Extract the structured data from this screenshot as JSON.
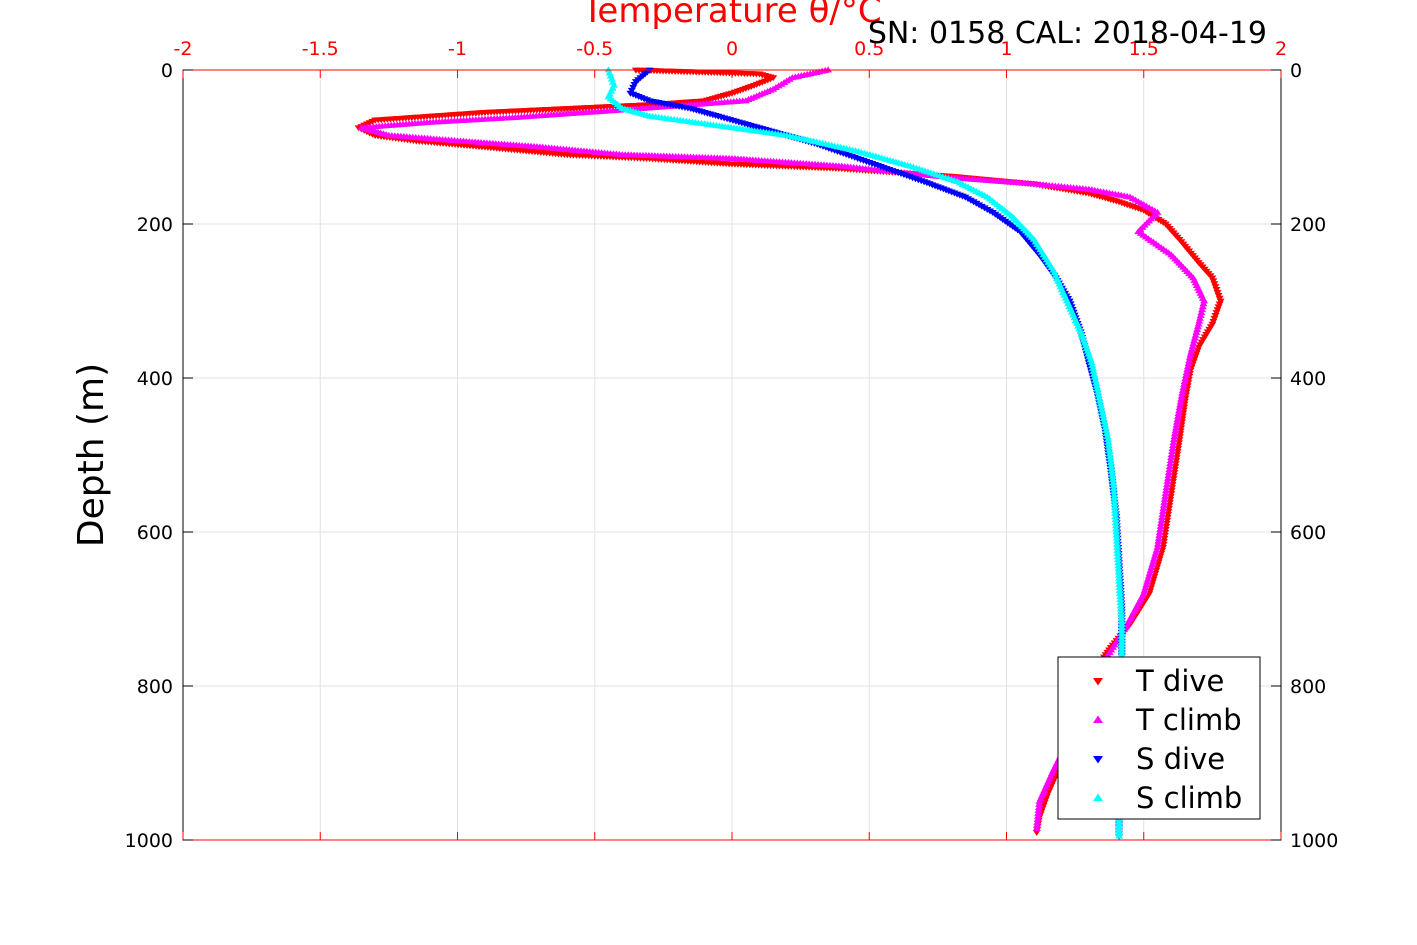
{
  "chart_data": {
    "type": "scatter",
    "title": "SN: 0158  CAL: 2018-04-19",
    "xlabel": "Temperature θ/°C",
    "ylabel": "Depth (m)",
    "xlim": [
      -2,
      2
    ],
    "ylim": [
      0,
      1000
    ],
    "y_reversed": true,
    "grid": true,
    "x_ticks": [
      "-2",
      "-1.5",
      "-1",
      "-0.5",
      "0",
      "0.5",
      "1",
      "1.5",
      "2"
    ],
    "y_ticks": [
      "0",
      "200",
      "400",
      "600",
      "800",
      "1000"
    ],
    "legend_position": "bottom-right",
    "series": [
      {
        "name": "T dive",
        "color": "#ff0000",
        "marker": "triangle-down",
        "points": [
          [
            -0.35,
            0
          ],
          [
            0.1,
            5
          ],
          [
            0.15,
            10
          ],
          [
            0.08,
            20
          ],
          [
            0.0,
            30
          ],
          [
            -0.1,
            40
          ],
          [
            -0.3,
            45
          ],
          [
            -0.6,
            50
          ],
          [
            -0.9,
            55
          ],
          [
            -1.1,
            60
          ],
          [
            -1.3,
            65
          ],
          [
            -1.36,
            75
          ],
          [
            -1.3,
            85
          ],
          [
            -1.15,
            92
          ],
          [
            -0.9,
            100
          ],
          [
            -0.6,
            110
          ],
          [
            -0.3,
            115
          ],
          [
            0.0,
            122
          ],
          [
            0.4,
            128
          ],
          [
            0.8,
            138
          ],
          [
            1.1,
            148
          ],
          [
            1.3,
            160
          ],
          [
            1.4,
            170
          ],
          [
            1.5,
            182
          ],
          [
            1.58,
            200
          ],
          [
            1.63,
            220
          ],
          [
            1.7,
            250
          ],
          [
            1.75,
            270
          ],
          [
            1.78,
            300
          ],
          [
            1.75,
            330
          ],
          [
            1.7,
            360
          ],
          [
            1.67,
            390
          ],
          [
            1.65,
            430
          ],
          [
            1.63,
            480
          ],
          [
            1.6,
            550
          ],
          [
            1.57,
            620
          ],
          [
            1.52,
            680
          ],
          [
            1.45,
            720
          ],
          [
            1.38,
            750
          ],
          [
            1.3,
            790
          ],
          [
            1.25,
            840
          ],
          [
            1.2,
            900
          ],
          [
            1.15,
            940
          ],
          [
            1.12,
            970
          ],
          [
            1.11,
            990
          ]
        ]
      },
      {
        "name": "T climb",
        "color": "#ff00ff",
        "marker": "triangle-up",
        "points": [
          [
            0.35,
            0
          ],
          [
            0.22,
            10
          ],
          [
            0.15,
            25
          ],
          [
            0.05,
            40
          ],
          [
            -0.4,
            52
          ],
          [
            -0.8,
            62
          ],
          [
            -1.1,
            68
          ],
          [
            -1.35,
            75
          ],
          [
            -1.25,
            85
          ],
          [
            -1.0,
            92
          ],
          [
            -0.7,
            100
          ],
          [
            -0.4,
            110
          ],
          [
            0.0,
            115
          ],
          [
            0.4,
            125
          ],
          [
            0.8,
            140
          ],
          [
            1.1,
            148
          ],
          [
            1.3,
            155
          ],
          [
            1.45,
            165
          ],
          [
            1.55,
            185
          ],
          [
            1.48,
            210
          ],
          [
            1.6,
            240
          ],
          [
            1.68,
            270
          ],
          [
            1.72,
            300
          ],
          [
            1.7,
            330
          ],
          [
            1.67,
            370
          ],
          [
            1.64,
            420
          ],
          [
            1.61,
            480
          ],
          [
            1.58,
            550
          ],
          [
            1.55,
            620
          ],
          [
            1.5,
            680
          ],
          [
            1.44,
            720
          ],
          [
            1.37,
            760
          ],
          [
            1.3,
            800
          ],
          [
            1.24,
            860
          ],
          [
            1.17,
            910
          ],
          [
            1.12,
            950
          ],
          [
            1.11,
            985
          ]
        ]
      },
      {
        "name": "S dive",
        "color": "#0000ff",
        "marker": "triangle-down",
        "points": [
          [
            -0.3,
            0
          ],
          [
            -0.35,
            15
          ],
          [
            -0.37,
            30
          ],
          [
            -0.3,
            40
          ],
          [
            -0.15,
            50
          ],
          [
            -0.05,
            60
          ],
          [
            0.1,
            75
          ],
          [
            0.3,
            95
          ],
          [
            0.5,
            120
          ],
          [
            0.7,
            145
          ],
          [
            0.85,
            165
          ],
          [
            0.95,
            185
          ],
          [
            1.05,
            210
          ],
          [
            1.12,
            240
          ],
          [
            1.18,
            270
          ],
          [
            1.23,
            300
          ],
          [
            1.27,
            340
          ],
          [
            1.3,
            380
          ],
          [
            1.33,
            420
          ],
          [
            1.36,
            470
          ],
          [
            1.38,
            520
          ],
          [
            1.4,
            580
          ],
          [
            1.41,
            640
          ],
          [
            1.42,
            700
          ],
          [
            1.42,
            780
          ],
          [
            1.41,
            860
          ],
          [
            1.41,
            940
          ],
          [
            1.41,
            995
          ]
        ]
      },
      {
        "name": "S climb",
        "color": "#00ffff",
        "marker": "triangle-up",
        "points": [
          [
            -0.45,
            0
          ],
          [
            -0.43,
            20
          ],
          [
            -0.45,
            35
          ],
          [
            -0.4,
            50
          ],
          [
            -0.3,
            60
          ],
          [
            -0.1,
            70
          ],
          [
            0.2,
            85
          ],
          [
            0.45,
            105
          ],
          [
            0.65,
            125
          ],
          [
            0.82,
            145
          ],
          [
            0.93,
            165
          ],
          [
            1.02,
            190
          ],
          [
            1.1,
            220
          ],
          [
            1.17,
            260
          ],
          [
            1.22,
            300
          ],
          [
            1.27,
            340
          ],
          [
            1.31,
            380
          ],
          [
            1.34,
            430
          ],
          [
            1.37,
            480
          ],
          [
            1.39,
            540
          ],
          [
            1.4,
            600
          ],
          [
            1.41,
            660
          ],
          [
            1.42,
            720
          ],
          [
            1.42,
            800
          ],
          [
            1.41,
            880
          ],
          [
            1.41,
            950
          ],
          [
            1.41,
            995
          ]
        ]
      }
    ]
  },
  "colors": {
    "axis_x_top": "#ff0000",
    "axis_y": "#000000",
    "grid": "#e3e3e3"
  }
}
